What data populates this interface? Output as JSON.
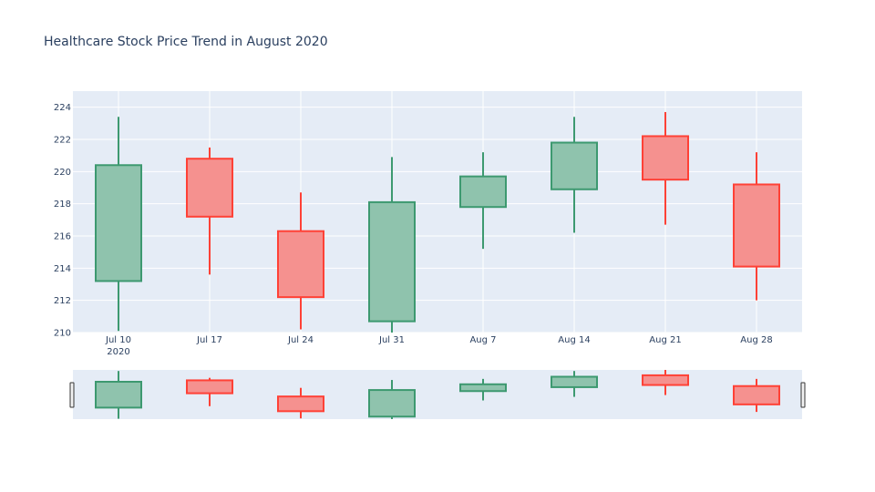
{
  "chart_data": {
    "type": "candlestick",
    "title": "Healthcare Stock Price Trend in August 2020",
    "xlabel": "",
    "ylabel": "",
    "ylim": [
      210,
      225
    ],
    "yticks": [
      210,
      212,
      214,
      216,
      218,
      220,
      222,
      224
    ],
    "grid": true,
    "rangeslider": true,
    "colors": {
      "increasing_line": "#3d9970",
      "increasing_fill": "#8fc3ad",
      "decreasing_line": "#ff4136",
      "decreasing_fill": "#f5918f",
      "plot_bg": "#e5ecf6",
      "grid": "#ffffff",
      "text": "#2a3f5f"
    },
    "candles": [
      {
        "date": "Jul 10",
        "year": "2020",
        "open": 213.2,
        "high": 223.4,
        "low": 210.1,
        "close": 220.4
      },
      {
        "date": "Jul 17",
        "open": 220.8,
        "high": 221.5,
        "low": 213.6,
        "close": 217.2
      },
      {
        "date": "Jul 24",
        "open": 216.3,
        "high": 218.7,
        "low": 210.2,
        "close": 212.2
      },
      {
        "date": "Jul 31",
        "open": 210.7,
        "high": 220.9,
        "low": 210.0,
        "close": 218.1
      },
      {
        "date": "Aug 7",
        "open": 217.8,
        "high": 221.2,
        "low": 215.2,
        "close": 219.7
      },
      {
        "date": "Aug 14",
        "open": 218.9,
        "high": 223.4,
        "low": 216.2,
        "close": 221.8
      },
      {
        "date": "Aug 21",
        "open": 222.2,
        "high": 223.7,
        "low": 216.7,
        "close": 219.5
      },
      {
        "date": "Aug 28",
        "open": 219.2,
        "high": 221.2,
        "low": 212.0,
        "close": 214.1
      }
    ]
  }
}
